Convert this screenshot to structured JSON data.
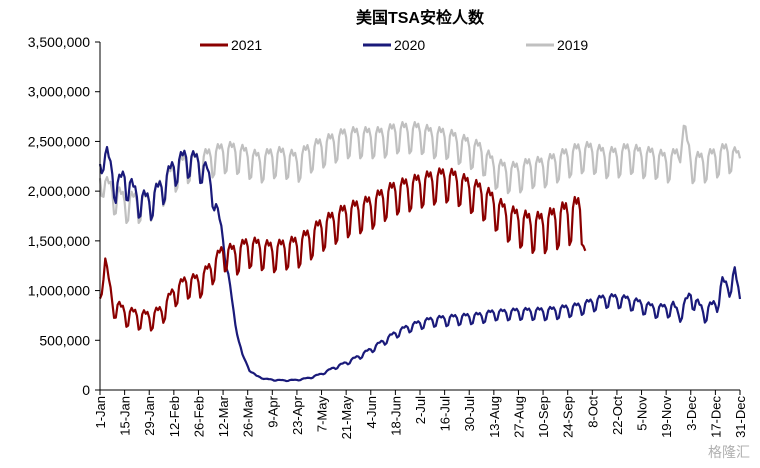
{
  "chart_data": {
    "type": "line",
    "title": "美国TSA安检人数",
    "xlabel": "",
    "ylabel": "",
    "ylim": [
      0,
      3500000
    ],
    "yticks": [
      0,
      500000,
      1000000,
      1500000,
      2000000,
      2500000,
      3000000,
      3500000
    ],
    "ytick_labels": [
      "0",
      "500,000",
      "1,000,000",
      "1,500,000",
      "2,000,000",
      "2,500,000",
      "3,000,000",
      "3,500,000"
    ],
    "xlim_day": [
      1,
      365
    ],
    "xticks": [
      {
        "day": 1,
        "label": "1-Jan"
      },
      {
        "day": 15,
        "label": "15-Jan"
      },
      {
        "day": 29,
        "label": "29-Jan"
      },
      {
        "day": 43,
        "label": "12-Feb"
      },
      {
        "day": 57,
        "label": "26-Feb"
      },
      {
        "day": 71,
        "label": "12-Mar"
      },
      {
        "day": 85,
        "label": "26-Mar"
      },
      {
        "day": 99,
        "label": "9-Apr"
      },
      {
        "day": 113,
        "label": "23-Apr"
      },
      {
        "day": 127,
        "label": "7-May"
      },
      {
        "day": 141,
        "label": "21-May"
      },
      {
        "day": 155,
        "label": "4-Jun"
      },
      {
        "day": 169,
        "label": "18-Jun"
      },
      {
        "day": 183,
        "label": "2-Jul"
      },
      {
        "day": 197,
        "label": "16-Jul"
      },
      {
        "day": 211,
        "label": "30-Jul"
      },
      {
        "day": 225,
        "label": "13-Aug"
      },
      {
        "day": 239,
        "label": "27-Aug"
      },
      {
        "day": 253,
        "label": "10-Sep"
      },
      {
        "day": 267,
        "label": "24-Sep"
      },
      {
        "day": 281,
        "label": "8-Oct"
      },
      {
        "day": 295,
        "label": "22-Oct"
      },
      {
        "day": 309,
        "label": "5-Nov"
      },
      {
        "day": 323,
        "label": "19-Nov"
      },
      {
        "day": 337,
        "label": "3-Dec"
      },
      {
        "day": 351,
        "label": "17-Dec"
      },
      {
        "day": 365,
        "label": "31-Dec"
      }
    ],
    "legend": [
      "2021",
      "2020",
      "2019"
    ],
    "legend_position": "top",
    "grid": false,
    "series": [
      {
        "name": "2021",
        "color": "#8B0000",
        "order": 3,
        "x": [
          1,
          4,
          8,
          15,
          22,
          29,
          36,
          43,
          50,
          57,
          64,
          71,
          78,
          85,
          92,
          99,
          106,
          113,
          120,
          127,
          134,
          141,
          148,
          155,
          162,
          169,
          176,
          183,
          190,
          197,
          204,
          211,
          218,
          225,
          232,
          239,
          246,
          253,
          260,
          267,
          274,
          277
        ],
        "y": [
          900000,
          1300000,
          850000,
          750000,
          720000,
          700000,
          760000,
          950000,
          1050000,
          1050000,
          1180000,
          1350000,
          1320000,
          1400000,
          1380000,
          1350000,
          1380000,
          1400000,
          1480000,
          1580000,
          1650000,
          1720000,
          1760000,
          1800000,
          1880000,
          1950000,
          1980000,
          2020000,
          2050000,
          2080000,
          2050000,
          1980000,
          1920000,
          1820000,
          1700000,
          1650000,
          1600000,
          1600000,
          1650000,
          1700000,
          1750000,
          1400000
        ],
        "amp": [
          80000,
          50000,
          110000,
          110000,
          110000,
          110000,
          110000,
          120000,
          130000,
          140000,
          140000,
          150000,
          170000,
          170000,
          170000,
          170000,
          170000,
          180000,
          180000,
          190000,
          190000,
          190000,
          190000,
          190000,
          190000,
          190000,
          190000,
          190000,
          190000,
          190000,
          190000,
          190000,
          200000,
          200000,
          200000,
          210000,
          220000,
          230000,
          240000,
          250000,
          250000,
          0
        ]
      },
      {
        "name": "2020",
        "color": "#1a1a7a",
        "order": 2,
        "x": [
          1,
          5,
          10,
          15,
          22,
          29,
          36,
          43,
          50,
          57,
          62,
          66,
          70,
          74,
          78,
          82,
          86,
          90,
          95,
          100,
          106,
          113,
          120,
          127,
          134,
          141,
          148,
          155,
          162,
          169,
          176,
          183,
          190,
          197,
          204,
          211,
          218,
          225,
          232,
          239,
          246,
          253,
          260,
          267,
          274,
          281,
          288,
          295,
          302,
          309,
          316,
          323,
          327,
          330,
          337,
          344,
          351,
          355,
          358,
          362,
          365
        ],
        "y": [
          2250000,
          2350000,
          2000000,
          2100000,
          1900000,
          1850000,
          2000000,
          2200000,
          2300000,
          2250000,
          2150000,
          1900000,
          1600000,
          1150000,
          650000,
          350000,
          200000,
          140000,
          110000,
          100000,
          95000,
          100000,
          120000,
          160000,
          220000,
          270000,
          330000,
          400000,
          480000,
          560000,
          620000,
          660000,
          690000,
          700000,
          710000,
          720000,
          730000,
          760000,
          760000,
          770000,
          770000,
          770000,
          780000,
          800000,
          820000,
          860000,
          900000,
          900000,
          880000,
          840000,
          800000,
          800000,
          820000,
          740000,
          930000,
          760000,
          830000,
          1050000,
          1000000,
          1150000,
          900000
        ],
        "amp": [
          90000,
          110000,
          140000,
          160000,
          160000,
          160000,
          160000,
          160000,
          160000,
          150000,
          140000,
          110000,
          70000,
          40000,
          20000,
          10000,
          8000,
          6000,
          6000,
          6000,
          6000,
          6000,
          8000,
          10000,
          15000,
          20000,
          25000,
          30000,
          35000,
          40000,
          45000,
          50000,
          55000,
          60000,
          60000,
          60000,
          60000,
          60000,
          60000,
          65000,
          65000,
          70000,
          70000,
          70000,
          70000,
          75000,
          75000,
          75000,
          75000,
          75000,
          75000,
          75000,
          80000,
          80000,
          90000,
          90000,
          100000,
          100000,
          100000,
          100000,
          60000
        ]
      },
      {
        "name": "2019",
        "color": "#c0c0c0",
        "order": 1,
        "x": [
          1,
          8,
          15,
          22,
          29,
          36,
          43,
          50,
          57,
          64,
          71,
          78,
          85,
          92,
          99,
          106,
          113,
          120,
          127,
          134,
          141,
          148,
          155,
          162,
          169,
          176,
          183,
          190,
          197,
          204,
          211,
          218,
          225,
          232,
          239,
          246,
          253,
          260,
          267,
          274,
          281,
          288,
          295,
          302,
          309,
          316,
          323,
          330,
          332,
          337,
          344,
          351,
          358,
          365
        ],
        "y": [
          2100000,
          1950000,
          1850000,
          1850000,
          1850000,
          2000000,
          2150000,
          2250000,
          2250000,
          2300000,
          2350000,
          2350000,
          2300000,
          2250000,
          2300000,
          2300000,
          2250000,
          2350000,
          2400000,
          2450000,
          2500000,
          2500000,
          2500000,
          2500000,
          2550000,
          2550000,
          2550000,
          2500000,
          2500000,
          2450000,
          2400000,
          2350000,
          2200000,
          2150000,
          2150000,
          2200000,
          2200000,
          2250000,
          2300000,
          2350000,
          2350000,
          2300000,
          2300000,
          2350000,
          2300000,
          2300000,
          2250000,
          2300000,
          2650000,
          2250000,
          2250000,
          2300000,
          2350000,
          2300000
        ],
        "amp": [
          120000,
          170000,
          170000,
          170000,
          170000,
          170000,
          170000,
          170000,
          170000,
          170000,
          170000,
          170000,
          170000,
          170000,
          170000,
          170000,
          170000,
          170000,
          170000,
          170000,
          170000,
          170000,
          170000,
          170000,
          170000,
          170000,
          170000,
          170000,
          170000,
          170000,
          170000,
          170000,
          170000,
          170000,
          170000,
          170000,
          170000,
          170000,
          170000,
          170000,
          170000,
          170000,
          170000,
          170000,
          170000,
          170000,
          170000,
          170000,
          200000,
          170000,
          170000,
          170000,
          170000,
          120000
        ]
      }
    ]
  },
  "watermark": "格隆汇"
}
